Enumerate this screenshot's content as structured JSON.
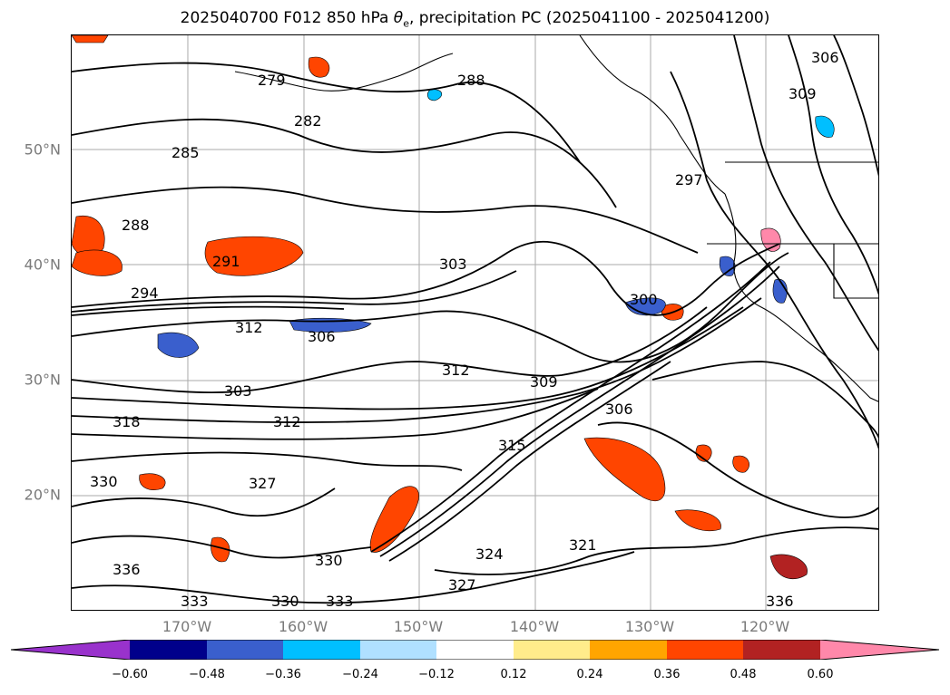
{
  "title": {
    "prefix": "2025040700 F012 850 hPa ",
    "theta": "θ",
    "theta_sub": "e",
    "suffix": ", precipitation PC (2025041100 - 2025041200)"
  },
  "map": {
    "lat_labels": [
      "50°N",
      "40°N",
      "30°N",
      "20°N"
    ],
    "lon_labels": [
      "170°W",
      "160°W",
      "150°W",
      "140°W",
      "130°W",
      "120°W"
    ],
    "gridlines": true
  },
  "contours": {
    "variable": "850 hPa theta-e",
    "labels": [
      "279",
      "282",
      "285",
      "288",
      "288",
      "291",
      "294",
      "297",
      "300",
      "303",
      "303",
      "306",
      "306",
      "309",
      "309",
      "312",
      "312",
      "312",
      "315",
      "318",
      "321",
      "324",
      "327",
      "327",
      "330",
      "330",
      "330",
      "333",
      "333",
      "336",
      "336",
      "306"
    ]
  },
  "colorbar": {
    "tick_labels": [
      "−0.60",
      "−0.48",
      "−0.36",
      "−0.24",
      "−0.12",
      "0.12",
      "0.24",
      "0.36",
      "0.48",
      "0.60"
    ],
    "colors": [
      "#9932cc",
      "#00008b",
      "#3a5fcd",
      "#00bfff",
      "#b0e0ff",
      "#ffffff",
      "#ffec8b",
      "#ffa500",
      "#ff4500",
      "#b22222",
      "#ff88aa"
    ],
    "extend": "both"
  }
}
